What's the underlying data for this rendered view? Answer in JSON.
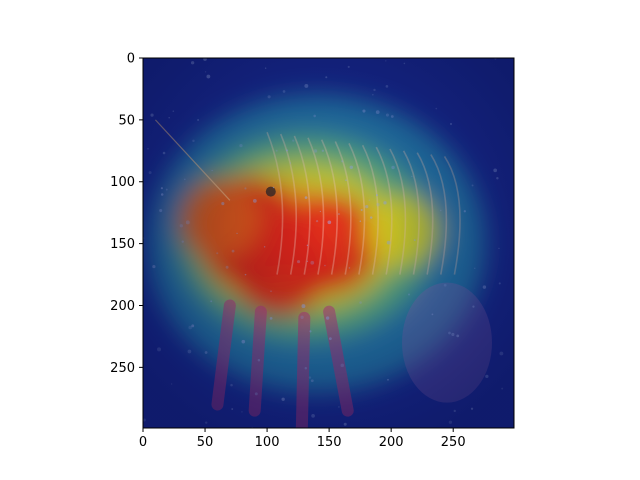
{
  "chart_data": {
    "type": "heatmap",
    "title": "",
    "xlabel": "",
    "ylabel": "",
    "xlim": [
      0,
      299
    ],
    "ylim": [
      299,
      0
    ],
    "y_axis_inverted": true,
    "grid": false,
    "x_ticks": [
      0,
      50,
      100,
      150,
      200,
      250
    ],
    "y_ticks": [
      0,
      50,
      100,
      150,
      200,
      250
    ],
    "colormap": "jet",
    "colors": {
      "background_low": "#1b2fa8",
      "mid": "#2ec8d0",
      "warm": "#f2e21e",
      "high": "#e3261b"
    },
    "overlay_subject": "crustacean-photo-with-attention-heatmap",
    "hotspots": [
      {
        "x": 85,
        "y": 140,
        "intensity": 1.0
      },
      {
        "x": 150,
        "y": 150,
        "intensity": 0.85
      },
      {
        "x": 110,
        "y": 170,
        "intensity": 0.8
      },
      {
        "x": 210,
        "y": 140,
        "intensity": 0.45
      },
      {
        "x": 60,
        "y": 130,
        "intensity": 0.55
      }
    ]
  }
}
